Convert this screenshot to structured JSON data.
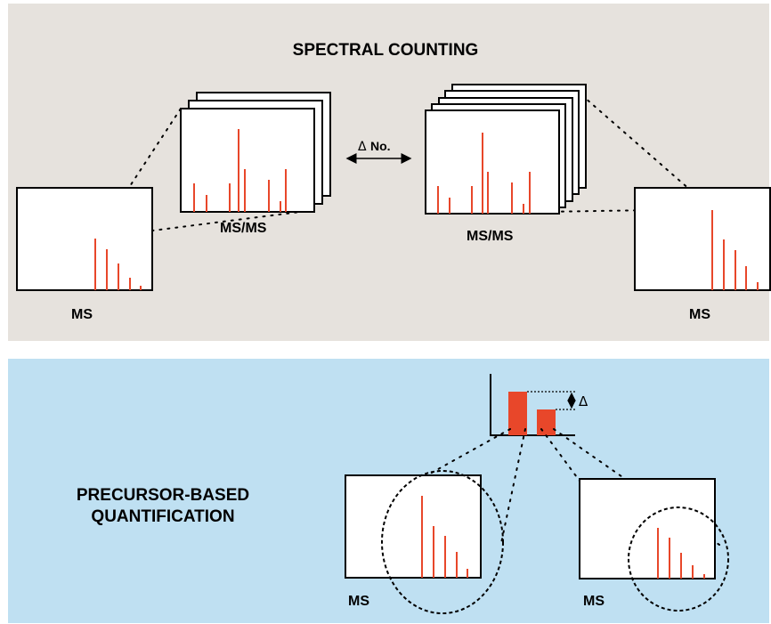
{
  "spectral": {
    "title": "SPECTRAL COUNTING",
    "ms_label_left": "MS",
    "msms_label_left": "MS/MS",
    "delta_symbol": "Δ",
    "delta_no": "No.",
    "msms_label_right": "MS/MS",
    "ms_label_right": "MS"
  },
  "precursor": {
    "title_line1": "PRECURSOR-BASED",
    "title_line2": "QUANTIFICATION",
    "delta_symbol": "Δ",
    "ms_label_left": "MS",
    "ms_label_right": "MS"
  },
  "colors": {
    "spectral_bg": "#e6e2dd",
    "precursor_bg": "#bfe0f2",
    "peak": "#e8472a"
  }
}
